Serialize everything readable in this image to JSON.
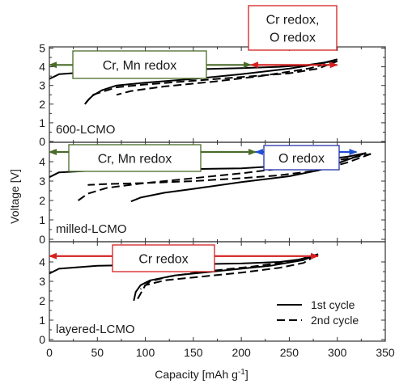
{
  "chart_data": {
    "type": "line",
    "xlabel": "Capacity [mAh g",
    "xlabel_sup": "-1",
    "xlabel_end": "]",
    "ylabel": "Voltage [V]",
    "xlim": [
      0,
      350
    ],
    "xticks": [
      "0",
      "50",
      "100",
      "150",
      "200",
      "250",
      "300",
      "350"
    ],
    "legend": {
      "placement": "bottom-right of bottom panel",
      "entries": [
        {
          "label": "1st cycle",
          "style": "solid"
        },
        {
          "label": "2nd cycle",
          "style": "dashed"
        }
      ]
    },
    "colors": {
      "green_arrow": "#4a6b2a",
      "red_arrow": "#d42020",
      "blue_arrow": "#1f4fd8",
      "green_box": "#4a6b2a",
      "red_box": "#d42020",
      "blue_box": "#2233aa"
    },
    "panels": [
      {
        "label": "600-LCMO",
        "ylim": [
          0,
          5
        ],
        "yticks": [
          "0",
          "1",
          "2",
          "3",
          "4",
          "5"
        ],
        "annotations": [
          {
            "text": "Cr, Mn redox",
            "box_color": "green",
            "arrow": {
              "color": "green",
              "from_x": 0,
              "to_x": 210,
              "y": 4.1
            }
          },
          {
            "text": "Cr redox,\nO redox",
            "box_color": "red",
            "arrow": {
              "color": "red",
              "from_x": 210,
              "to_x": 300,
              "y": 4.1
            }
          }
        ],
        "series": [
          {
            "style": "solid",
            "charge": {
              "x": [
                0,
                10,
                50,
                100,
                150,
                200,
                240,
                270,
                290,
                300
              ],
              "y": [
                3.35,
                3.6,
                3.75,
                3.8,
                3.86,
                3.93,
                4.0,
                4.1,
                4.25,
                4.4
              ]
            },
            "discharge": {
              "x": [
                300,
                285,
                250,
                200,
                150,
                100,
                70,
                55,
                45,
                40,
                37
              ],
              "y": [
                4.4,
                4.2,
                3.9,
                3.6,
                3.35,
                3.15,
                3.0,
                2.75,
                2.45,
                2.2,
                2.0
              ]
            }
          },
          {
            "style": "dashed",
            "charge": {
              "x": [
                37,
                45,
                70,
                100,
                150,
                200,
                250,
                280,
                300
              ],
              "y": [
                2.0,
                2.5,
                2.9,
                3.05,
                3.25,
                3.45,
                3.65,
                3.9,
                4.3
              ]
            },
            "discharge": {
              "x": [
                300,
                270,
                220,
                170,
                120,
                85,
                70
              ],
              "y": [
                4.3,
                3.9,
                3.5,
                3.2,
                2.95,
                2.7,
                2.5
              ]
            }
          }
        ]
      },
      {
        "label": "milled-LCMO",
        "ylim": [
          0,
          5
        ],
        "yticks": [
          "0",
          "1",
          "2",
          "3",
          "4"
        ],
        "annotations": [
          {
            "text": "Cr, Mn redox",
            "box_color": "green",
            "arrow": {
              "color": "green",
              "from_x": 0,
              "to_x": 215,
              "y": 4.5
            }
          },
          {
            "text": "O redox",
            "box_color": "blue",
            "arrow": {
              "color": "blue",
              "from_x": 215,
              "to_x": 320,
              "y": 4.5
            }
          }
        ],
        "series": [
          {
            "style": "solid",
            "charge": {
              "x": [
                0,
                10,
                50,
                100,
                150,
                200,
                230,
                250,
                280,
                310,
                330
              ],
              "y": [
                3.2,
                3.45,
                3.55,
                3.6,
                3.62,
                3.66,
                3.75,
                3.95,
                4.1,
                4.25,
                4.45
              ]
            },
            "discharge": {
              "x": [
                330,
                305,
                280,
                250,
                200,
                150,
                120,
                95,
                85
              ],
              "y": [
                4.45,
                4.0,
                3.55,
                3.25,
                2.95,
                2.6,
                2.4,
                2.15,
                1.95
              ]
            }
          },
          {
            "style": "dashed",
            "charge": {
              "x": [
                30,
                40,
                60,
                100,
                150,
                200,
                250,
                280,
                310,
                335
              ],
              "y": [
                2.0,
                2.35,
                2.65,
                2.9,
                3.15,
                3.4,
                3.7,
                3.95,
                4.15,
                4.4
              ]
            },
            "discharge": {
              "x": [
                335,
                310,
                280,
                240,
                200,
                150,
                100,
                60,
                40
              ],
              "y": [
                4.4,
                3.95,
                3.55,
                3.3,
                3.15,
                3.0,
                2.9,
                2.85,
                2.8
              ]
            }
          }
        ]
      },
      {
        "label": "layered-LCMO",
        "ylim": [
          0,
          5
        ],
        "yticks": [
          "0",
          "1",
          "2",
          "3",
          "4"
        ],
        "annotations": [
          {
            "text": "Cr redox",
            "box_color": "red",
            "arrow": {
              "color": "red",
              "from_x": 0,
              "to_x": 280,
              "y": 4.3
            }
          }
        ],
        "series": [
          {
            "style": "solid",
            "charge": {
              "x": [
                0,
                10,
                50,
                100,
                150,
                200,
                240,
                265,
                280
              ],
              "y": [
                3.4,
                3.65,
                3.8,
                3.85,
                3.88,
                3.92,
                4.0,
                4.15,
                4.4
              ]
            },
            "discharge": {
              "x": [
                280,
                265,
                230,
                180,
                130,
                105,
                95,
                90,
                88
              ],
              "y": [
                4.4,
                4.1,
                3.8,
                3.55,
                3.3,
                3.05,
                2.8,
                2.45,
                2.0
              ]
            }
          },
          {
            "style": "dashed",
            "charge": {
              "x": [
                92,
                100,
                120,
                150,
                200,
                240,
                265,
                280
              ],
              "y": [
                2.1,
                2.8,
                3.05,
                3.2,
                3.45,
                3.7,
                3.95,
                4.4
              ]
            },
            "discharge": {
              "x": [
                280,
                255,
                210,
                160,
                125,
                105,
                95
              ],
              "y": [
                4.4,
                4.05,
                3.75,
                3.5,
                3.25,
                3.0,
                2.6
              ]
            }
          }
        ]
      }
    ]
  }
}
